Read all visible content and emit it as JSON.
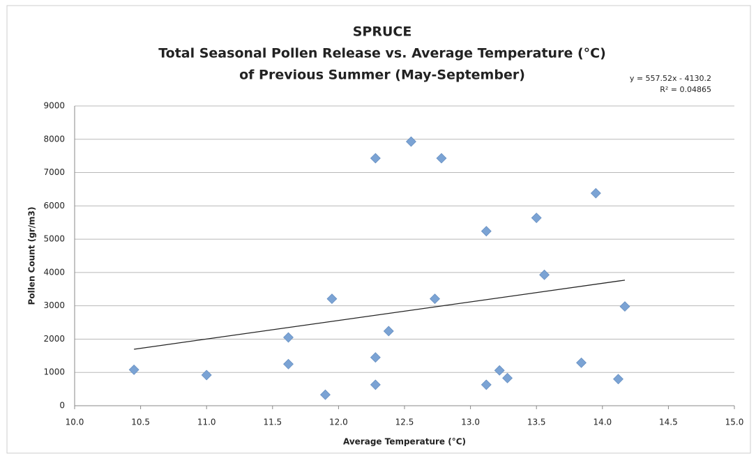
{
  "chart_data": {
    "type": "scatter",
    "title": [
      "SPRUCE",
      "Total Seasonal Pollen Release vs. Average Temperature (°C)",
      "of Previous Summer (May-September)"
    ],
    "annotations": [
      "y = 557.52x - 4130.2",
      "R² = 0.04865"
    ],
    "x_label": "Average Temperature (°C)",
    "y_label": "Pollen Count (gr/m3)",
    "x": [
      10.45,
      11.0,
      11.62,
      11.62,
      11.9,
      11.95,
      12.28,
      12.28,
      12.28,
      12.38,
      12.55,
      12.78,
      12.73,
      13.12,
      13.12,
      13.22,
      13.28,
      13.5,
      13.56,
      13.84,
      13.95,
      14.12,
      14.17
    ],
    "values": [
      1080,
      920,
      2050,
      1250,
      330,
      3210,
      7430,
      1450,
      630,
      2240,
      7930,
      7430,
      3210,
      5240,
      630,
      1060,
      830,
      5640,
      3930,
      1290,
      6380,
      800,
      2980
    ],
    "color": "#7ba3d4",
    "trendline": {
      "x": [
        10.45,
        14.17
      ],
      "y": [
        1696,
        3770
      ],
      "color": "#222222"
    },
    "xlim": [
      10,
      15
    ],
    "xticks": [
      {
        "value": 10,
        "label": "10.0"
      },
      10.5,
      {
        "value": 11,
        "label": "11.0"
      },
      11.5,
      {
        "value": 12,
        "label": "12.0"
      },
      12.5,
      {
        "value": 13,
        "label": "13.0"
      },
      13.5,
      {
        "value": 14,
        "label": "14.0"
      },
      14.5,
      {
        "value": 15,
        "label": "15.0"
      }
    ],
    "ylim": [
      0,
      9000
    ],
    "yticks": [
      0,
      1000,
      2000,
      3000,
      4000,
      5000,
      6000,
      7000,
      8000,
      9000
    ],
    "grid": true
  }
}
